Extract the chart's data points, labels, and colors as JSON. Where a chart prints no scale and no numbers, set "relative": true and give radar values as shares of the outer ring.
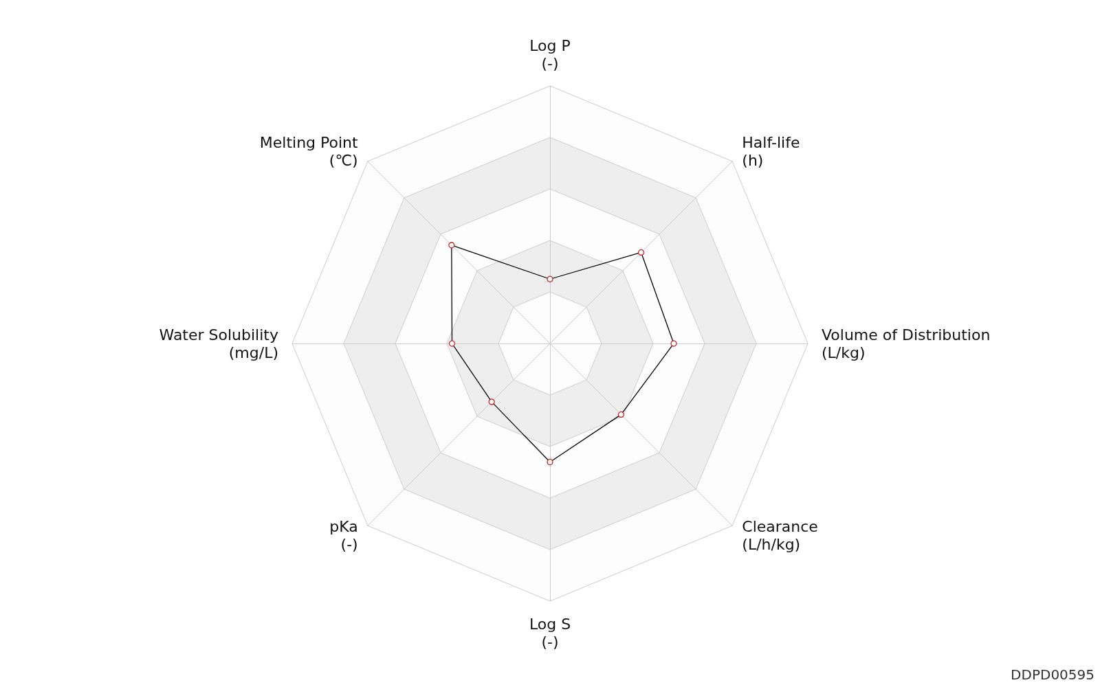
{
  "chart_data": {
    "type": "radar",
    "relative": true,
    "marker": "circle",
    "line_style": "solid",
    "categories": [
      "Log P\n(-)",
      "Half-life\n(h)",
      "Volume of Distribution\n(L/kg)",
      "Clearance\n(L/h/kg)",
      "Log S\n(-)",
      "pKa\n(-)",
      "Water Solubility\n(mg/L)",
      "Melting Point\n(℃)"
    ],
    "series": [
      {
        "color": "#000000",
        "values": [
          0.25,
          0.5,
          0.48,
          0.39,
          0.46,
          0.32,
          0.38,
          0.54
        ]
      }
    ],
    "annotations": [
      "DDPD00595"
    ]
  }
}
